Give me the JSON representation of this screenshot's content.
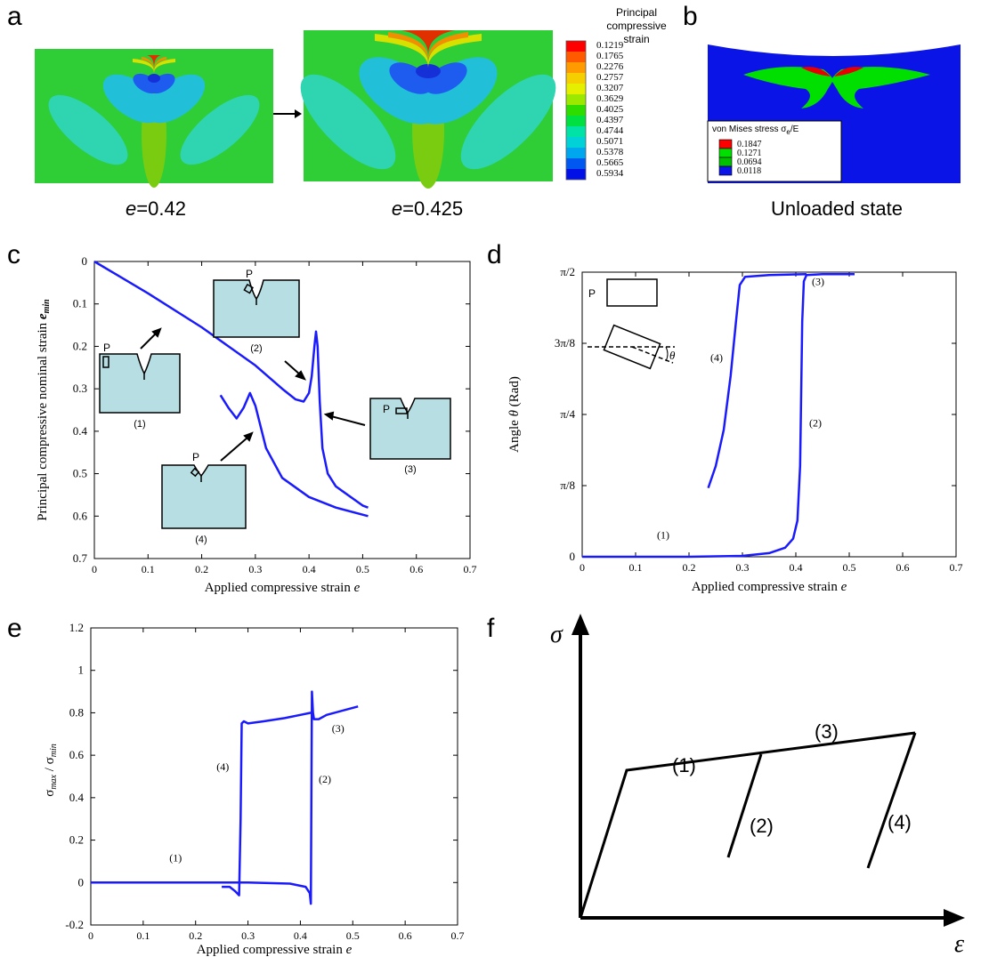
{
  "panel_a": {
    "letter": "a",
    "left_caption_var": "e",
    "left_caption_val": "=0.42",
    "right_caption_var": "e",
    "right_caption_val": "=0.425",
    "legend_title_1": "Principal compressive",
    "legend_title_2": "strain",
    "legend_values": [
      "0.1219",
      "0.1765",
      "0.2276",
      "0.2757",
      "0.3207",
      "0.3629",
      "0.4025",
      "0.4397",
      "0.4744",
      "0.5071",
      "0.5378",
      "0.5665",
      "0.5934"
    ],
    "legend_colors": [
      "#ff0000",
      "#ff5a00",
      "#ff9a00",
      "#f6cf00",
      "#e4f000",
      "#9de800",
      "#2fdc00",
      "#00e040",
      "#00e2a6",
      "#00d2d8",
      "#00a6ee",
      "#0058f0",
      "#0010e6"
    ],
    "field_colors": {
      "background": "#2fcd36",
      "lobe_light": "#2fd4b0",
      "lobe_mid": "#22c0d8",
      "core_blue": "#1e5cf0",
      "core_dark": "#1630d8",
      "surface_red": "#e03000",
      "surface_orange": "#f09000",
      "surface_yellow": "#d8e000",
      "vertical_lobe": "#7acc10"
    }
  },
  "panel_b": {
    "letter": "b",
    "caption": "Unloaded state",
    "legend_title": "von Mises stress σ",
    "legend_title_sub": "e",
    "legend_title_tail": "/E",
    "legend_values": [
      "0.1847",
      "0.1271",
      "0.0694",
      "0.0118"
    ],
    "legend_colors": [
      "#ff0000",
      "#00e000",
      "#00c000",
      "#0a14e6"
    ],
    "background_color": "#0a14e6",
    "green_color": "#00e000",
    "red_color": "#e80000"
  },
  "panel_c": {
    "letter": "c",
    "chart_data": {
      "type": "line",
      "xlabel": "Applied compressive strain e",
      "ylabel": "Principal compressive nominal strain e_min",
      "xlim": [
        0,
        0.7
      ],
      "ylim": [
        0,
        0.7
      ],
      "y_inverted": true,
      "x_ticks": [
        "0",
        "0.1",
        "0.2",
        "0.3",
        "0.4",
        "0.5",
        "0.6",
        "0.7"
      ],
      "y_ticks": [
        "0",
        "0.1",
        "0.2",
        "0.3",
        "0.4",
        "0.5",
        "0.6",
        "0.7"
      ],
      "series_color": "#1a1aff",
      "series": [
        {
          "points": [
            [
              0,
              0
            ],
            [
              0.1,
              0.075
            ],
            [
              0.2,
              0.155
            ],
            [
              0.3,
              0.245
            ],
            [
              0.35,
              0.3
            ],
            [
              0.375,
              0.325
            ],
            [
              0.39,
              0.33
            ],
            [
              0.4,
              0.31
            ],
            [
              0.405,
              0.27
            ],
            [
              0.41,
              0.2
            ],
            [
              0.413,
              0.165
            ],
            [
              0.416,
              0.2
            ],
            [
              0.42,
              0.33
            ],
            [
              0.425,
              0.44
            ],
            [
              0.435,
              0.5
            ],
            [
              0.45,
              0.53
            ],
            [
              0.5,
              0.575
            ],
            [
              0.51,
              0.58
            ]
          ]
        },
        {
          "points": [
            [
              0.235,
              0.315
            ],
            [
              0.25,
              0.345
            ],
            [
              0.265,
              0.37
            ],
            [
              0.278,
              0.345
            ],
            [
              0.29,
              0.31
            ],
            [
              0.3,
              0.34
            ],
            [
              0.32,
              0.44
            ],
            [
              0.35,
              0.51
            ],
            [
              0.4,
              0.555
            ],
            [
              0.45,
              0.58
            ],
            [
              0.51,
              0.6
            ]
          ]
        }
      ],
      "annotations": [
        "P",
        "(1)",
        "P",
        "(2)",
        "P",
        "(3)",
        "P",
        "(4)"
      ]
    }
  },
  "panel_d": {
    "letter": "d",
    "chart_data": {
      "type": "line",
      "xlabel": "Applied compressive strain e",
      "ylabel": "Angle θ (Rad)",
      "xlim": [
        0,
        0.7
      ],
      "ylim": [
        0,
        1.5708
      ],
      "x_ticks": [
        "0",
        "0.1",
        "0.2",
        "0.3",
        "0.4",
        "0.5",
        "0.6",
        "0.7"
      ],
      "y_ticks": [
        {
          "label": "0",
          "value": 0
        },
        {
          "label": "π/8",
          "value": 0.3927
        },
        {
          "label": "π/4",
          "value": 0.7854
        },
        {
          "label": "3π/8",
          "value": 1.1781
        },
        {
          "label": "π/2",
          "value": 1.5708
        }
      ],
      "series_color": "#1a1aff",
      "series": [
        {
          "points": [
            [
              0,
              0
            ],
            [
              0.2,
              0.0
            ],
            [
              0.3,
              0.005
            ],
            [
              0.35,
              0.02
            ],
            [
              0.38,
              0.05
            ],
            [
              0.395,
              0.1
            ],
            [
              0.403,
              0.2
            ],
            [
              0.408,
              0.5
            ],
            [
              0.41,
              0.9
            ],
            [
              0.412,
              1.3
            ],
            [
              0.415,
              1.52
            ],
            [
              0.42,
              1.555
            ],
            [
              0.45,
              1.56
            ],
            [
              0.51,
              1.56
            ]
          ]
        },
        {
          "points": [
            [
              0.236,
              0.38
            ],
            [
              0.25,
              0.5
            ],
            [
              0.265,
              0.7
            ],
            [
              0.278,
              1.0
            ],
            [
              0.288,
              1.3
            ],
            [
              0.295,
              1.5
            ],
            [
              0.305,
              1.545
            ],
            [
              0.35,
              1.555
            ],
            [
              0.42,
              1.56
            ]
          ]
        }
      ],
      "annotations": [
        "P",
        "θ",
        "(1)",
        "(2)",
        "(3)",
        "(4)"
      ]
    }
  },
  "panel_e": {
    "letter": "e",
    "chart_data": {
      "type": "line",
      "xlabel": "Applied compressive strain e",
      "ylabel": "σmax / σmin",
      "xlim": [
        0,
        0.7
      ],
      "ylim": [
        -0.2,
        1.2
      ],
      "x_ticks": [
        "0",
        "0.1",
        "0.2",
        "0.3",
        "0.4",
        "0.5",
        "0.6",
        "0.7"
      ],
      "y_ticks": [
        "-0.2",
        "0",
        "0.2",
        "0.4",
        "0.6",
        "0.8",
        "1",
        "1.2"
      ],
      "series_color": "#1a1aff",
      "series": [
        {
          "points": [
            [
              0,
              0
            ],
            [
              0.3,
              0.0
            ],
            [
              0.38,
              -0.005
            ],
            [
              0.41,
              -0.02
            ],
            [
              0.418,
              -0.05
            ],
            [
              0.42,
              -0.1
            ],
            [
              0.421,
              0.4
            ],
            [
              0.422,
              0.9
            ],
            [
              0.424,
              0.8
            ],
            [
              0.426,
              0.77
            ],
            [
              0.435,
              0.77
            ],
            [
              0.45,
              0.79
            ],
            [
              0.51,
              0.83
            ]
          ]
        },
        {
          "points": [
            [
              0.25,
              -0.02
            ],
            [
              0.265,
              -0.02
            ],
            [
              0.275,
              -0.04
            ],
            [
              0.283,
              -0.06
            ],
            [
              0.286,
              0.3
            ],
            [
              0.288,
              0.75
            ],
            [
              0.292,
              0.76
            ],
            [
              0.3,
              0.75
            ],
            [
              0.33,
              0.76
            ],
            [
              0.37,
              0.775
            ],
            [
              0.4,
              0.79
            ],
            [
              0.42,
              0.8
            ]
          ]
        }
      ],
      "annotations": [
        "(1)",
        "(2)",
        "(3)",
        "(4)"
      ]
    }
  },
  "panel_f": {
    "letter": "f",
    "y_axis_label": "σ",
    "x_axis_label": "ε",
    "annotations": [
      "(1)",
      "(2)",
      "(3)",
      "(4)"
    ]
  }
}
